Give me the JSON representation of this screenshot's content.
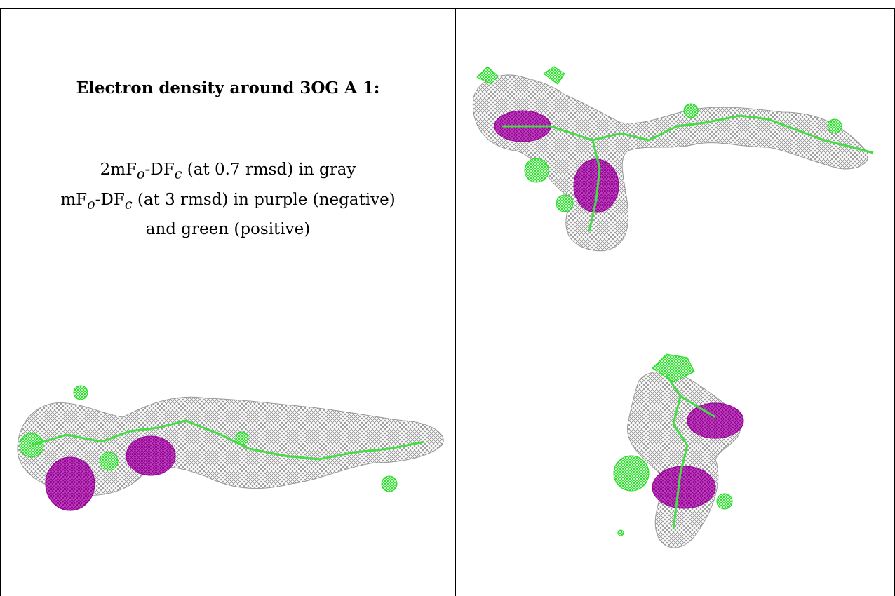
{
  "title": "Electron density around 3OG A 1:",
  "legend": {
    "line1_a": "2mF",
    "line1_sub_o": "o",
    "line1_b": "-DF",
    "line1_sub_c": "c",
    "line1_c": " (at 0.7 rmsd) in gray",
    "line2_a": "mF",
    "line2_sub_o": "o",
    "line2_b": "-DF",
    "line2_sub_c": "c",
    "line2_c": " (at 3 rmsd) in purple (negative)",
    "line3": "and green (positive)"
  },
  "colors": {
    "mesh_gray": "#9a9a9a",
    "negative_purple": "#b000b0",
    "positive_green": "#22dd22",
    "model_green": "#44dd44"
  },
  "panels": [
    {
      "name": "density-view-top-right"
    },
    {
      "name": "density-view-bottom-left"
    },
    {
      "name": "density-view-bottom-right"
    }
  ]
}
